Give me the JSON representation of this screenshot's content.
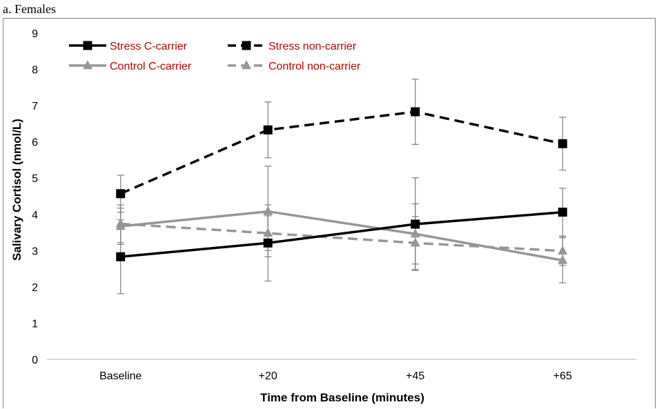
{
  "panel_title": "a. Females",
  "chart_data": {
    "type": "line",
    "title": "",
    "xlabel": "Time from Baseline (minutes)",
    "ylabel": "Salivary Cortisol (nmol/L)",
    "categories": [
      "Baseline",
      "+20",
      "+45",
      "+65"
    ],
    "ylim": [
      0,
      9
    ],
    "yticks": [
      0,
      1,
      2,
      3,
      4,
      5,
      6,
      7,
      8,
      9
    ],
    "grid": false,
    "legend_position": "top-left",
    "series": [
      {
        "name": "Stress C-carrier",
        "values": [
          2.83,
          3.21,
          3.73,
          4.06
        ],
        "error": [
          1.02,
          1.05,
          1.28,
          0.66
        ],
        "color": "#000000",
        "dash": "solid",
        "marker": "square"
      },
      {
        "name": "Stress non-carrier",
        "values": [
          4.57,
          6.33,
          6.83,
          5.95
        ],
        "error": [
          0.51,
          0.77,
          0.9,
          0.73
        ],
        "color": "#000000",
        "dash": "dashed",
        "marker": "square"
      },
      {
        "name": "Control C-carrier",
        "values": [
          3.67,
          4.08,
          3.46,
          2.73
        ],
        "error": [
          0.5,
          1.25,
          0.83,
          0.62
        ],
        "color": "#969696",
        "dash": "solid",
        "marker": "triangle"
      },
      {
        "name": "Control non-carrier",
        "values": [
          3.74,
          3.48,
          3.21,
          2.99
        ],
        "error": [
          0.52,
          0.48,
          0.73,
          0.4
        ],
        "color": "#969696",
        "dash": "dashed",
        "marker": "triangle"
      }
    ],
    "legend_text_color": "#c00000"
  }
}
